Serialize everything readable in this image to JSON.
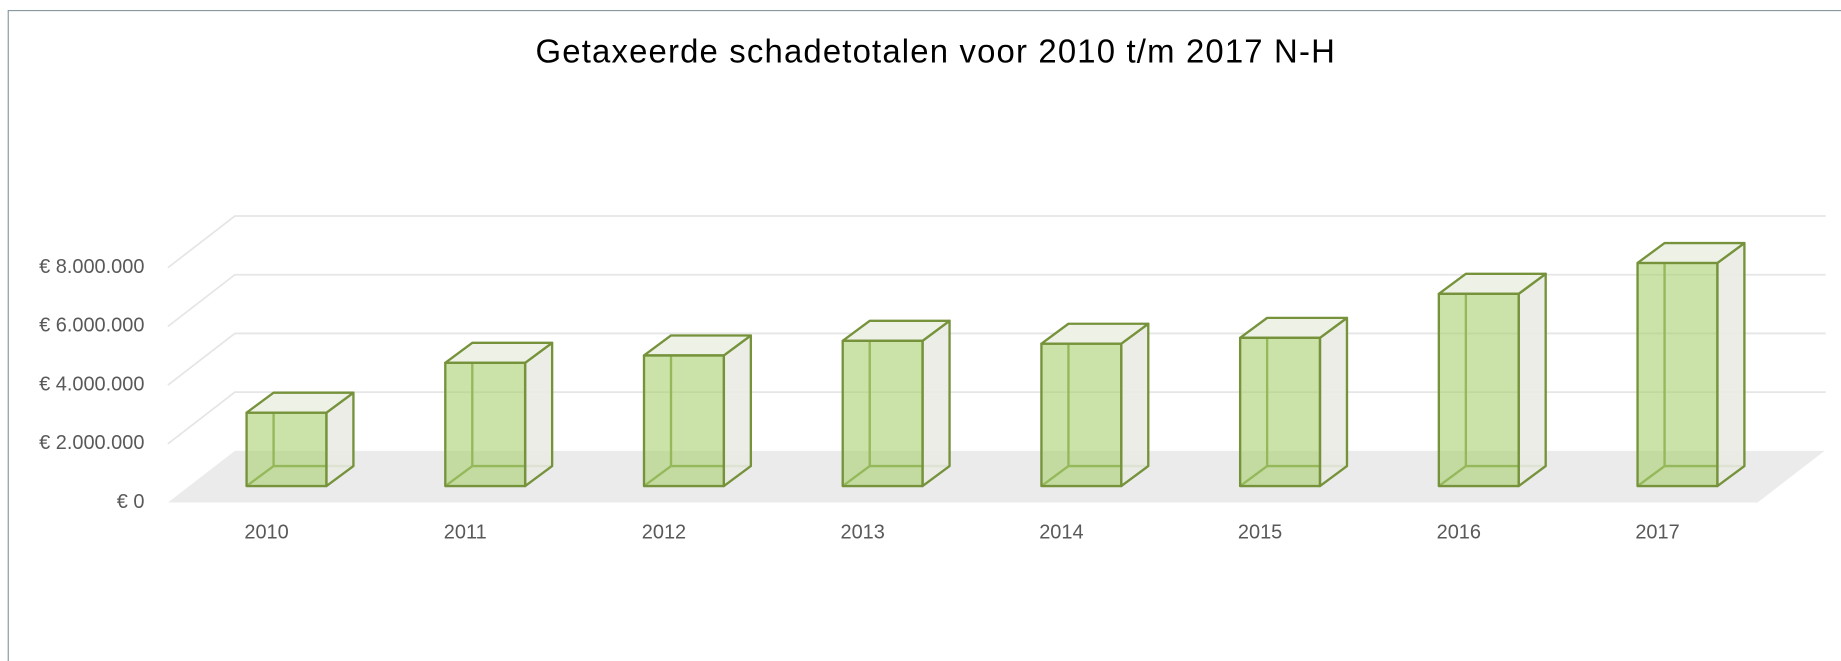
{
  "chart_data": {
    "type": "bar3d",
    "title": "Getaxeerde schadetotalen voor 2010 t/m 2017 N-H",
    "categories": [
      "2010",
      "2011",
      "2012",
      "2013",
      "2014",
      "2015",
      "2016",
      "2017"
    ],
    "values": [
      2500000,
      4200000,
      4450000,
      4950000,
      4850000,
      5050000,
      6550000,
      7600000
    ],
    "color": "#a9d16e",
    "ylim": [
      0,
      8000000
    ],
    "yticks": [
      {
        "value": 0,
        "label": "€ 0"
      },
      {
        "value": 2000000,
        "label": "€ 2.000.000"
      },
      {
        "value": 4000000,
        "label": "€ 4.000.000"
      },
      {
        "value": 6000000,
        "label": "€ 6.000.000"
      },
      {
        "value": 8000000,
        "label": "€ 8.000.000"
      }
    ],
    "grid": true
  }
}
